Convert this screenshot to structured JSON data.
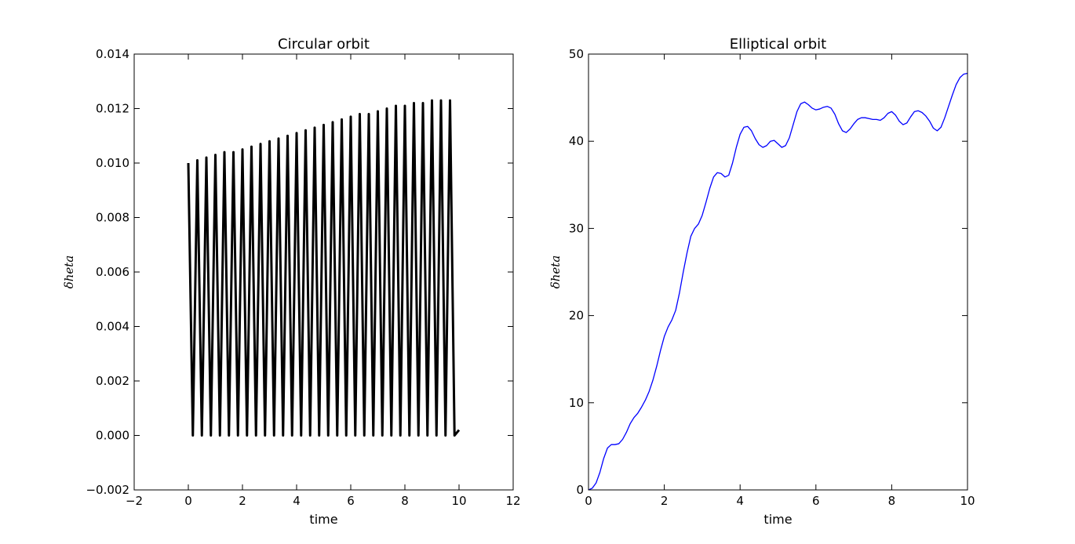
{
  "chart_data": [
    {
      "type": "line",
      "title": "Circular orbit",
      "xlabel": "time",
      "ylabel": "δheta",
      "xlim": [
        -2,
        12
      ],
      "ylim": [
        -0.002,
        0.014
      ],
      "xticks": [
        -2,
        0,
        2,
        4,
        6,
        8,
        10,
        12
      ],
      "xtick_labels": [
        "−2",
        "0",
        "2",
        "4",
        "6",
        "8",
        "10",
        "12"
      ],
      "yticks": [
        -0.002,
        0.0,
        0.002,
        0.004,
        0.006,
        0.008,
        0.01,
        0.012,
        0.014
      ],
      "ytick_labels": [
        "−0.002",
        "0.000",
        "0.002",
        "0.004",
        "0.006",
        "0.008",
        "0.010",
        "0.012",
        "0.014"
      ],
      "grid": false,
      "line_color": "#000000",
      "series": [
        {
          "x": [
            0.0,
            0.167,
            0.333,
            0.5,
            0.667,
            0.833,
            1.0,
            1.167,
            1.333,
            1.5,
            1.667,
            1.833,
            2.0,
            2.167,
            2.333,
            2.5,
            2.667,
            2.833,
            3.0,
            3.167,
            3.333,
            3.5,
            3.667,
            3.833,
            4.0,
            4.167,
            4.333,
            4.5,
            4.667,
            4.833,
            5.0,
            5.167,
            5.333,
            5.5,
            5.667,
            5.833,
            6.0,
            6.167,
            6.333,
            6.5,
            6.667,
            6.833,
            7.0,
            7.167,
            7.333,
            7.5,
            7.667,
            7.833,
            8.0,
            8.167,
            8.333,
            8.5,
            8.667,
            8.833,
            9.0,
            9.167,
            9.333,
            9.5,
            9.667,
            9.833,
            10.0
          ],
          "values": [
            0.01,
            0.0,
            0.0101,
            0.0,
            0.0102,
            0.0,
            0.0103,
            0.0,
            0.0104,
            0.0,
            0.0104,
            0.0,
            0.0105,
            0.0,
            0.0106,
            0.0,
            0.0107,
            0.0,
            0.0108,
            0.0,
            0.0109,
            0.0,
            0.011,
            0.0,
            0.0111,
            0.0,
            0.0112,
            0.0,
            0.0113,
            0.0,
            0.0114,
            0.0,
            0.0115,
            0.0,
            0.0116,
            0.0,
            0.0117,
            0.0,
            0.0118,
            0.0,
            0.0118,
            0.0,
            0.0119,
            0.0,
            0.012,
            0.0,
            0.0121,
            0.0,
            0.0121,
            0.0,
            0.0122,
            0.0,
            0.0122,
            0.0,
            0.0123,
            0.0,
            0.0123,
            0.0,
            0.0123,
            0.0,
            0.0002
          ]
        }
      ]
    },
    {
      "type": "line",
      "title": "Elliptical orbit",
      "xlabel": "time",
      "ylabel": "δheta",
      "xlim": [
        0,
        10
      ],
      "ylim": [
        0,
        50
      ],
      "xticks": [
        0,
        2,
        4,
        6,
        8,
        10
      ],
      "xtick_labels": [
        "0",
        "2",
        "4",
        "6",
        "8",
        "10"
      ],
      "yticks": [
        0,
        10,
        20,
        30,
        40,
        50
      ],
      "ytick_labels": [
        "0",
        "10",
        "20",
        "30",
        "40",
        "50"
      ],
      "grid": false,
      "line_color": "#0000ff",
      "series": [
        {
          "x": [
            0.0,
            0.1,
            0.2,
            0.3,
            0.4,
            0.5,
            0.6,
            0.7,
            0.8,
            0.9,
            1.0,
            1.1,
            1.2,
            1.3,
            1.4,
            1.5,
            1.6,
            1.7,
            1.8,
            1.9,
            2.0,
            2.1,
            2.2,
            2.3,
            2.4,
            2.5,
            2.6,
            2.7,
            2.8,
            2.9,
            3.0,
            3.1,
            3.2,
            3.3,
            3.4,
            3.5,
            3.6,
            3.7,
            3.8,
            3.9,
            4.0,
            4.1,
            4.2,
            4.3,
            4.4,
            4.5,
            4.6,
            4.7,
            4.8,
            4.9,
            5.0,
            5.1,
            5.2,
            5.3,
            5.4,
            5.5,
            5.6,
            5.7,
            5.8,
            5.9,
            6.0,
            6.1,
            6.2,
            6.3,
            6.4,
            6.5,
            6.6,
            6.7,
            6.8,
            6.9,
            7.0,
            7.1,
            7.2,
            7.3,
            7.4,
            7.5,
            7.6,
            7.7,
            7.8,
            7.9,
            8.0,
            8.1,
            8.2,
            8.3,
            8.4,
            8.5,
            8.6,
            8.7,
            8.8,
            8.9,
            9.0,
            9.1,
            9.2,
            9.3,
            9.4,
            9.5,
            9.6,
            9.7,
            9.8,
            9.9,
            10.0
          ],
          "values": [
            0.0,
            0.2,
            0.8,
            2.0,
            3.6,
            4.8,
            5.2,
            5.2,
            5.3,
            5.8,
            6.6,
            7.6,
            8.3,
            8.8,
            9.5,
            10.3,
            11.3,
            12.6,
            14.2,
            16.0,
            17.6,
            18.7,
            19.5,
            20.6,
            22.6,
            25.0,
            27.2,
            29.1,
            30.0,
            30.5,
            31.5,
            33.0,
            34.6,
            35.9,
            36.4,
            36.3,
            35.9,
            36.1,
            37.5,
            39.3,
            40.8,
            41.6,
            41.7,
            41.2,
            40.3,
            39.6,
            39.3,
            39.5,
            40.0,
            40.1,
            39.7,
            39.3,
            39.5,
            40.4,
            41.9,
            43.4,
            44.3,
            44.5,
            44.2,
            43.8,
            43.6,
            43.7,
            43.9,
            44.0,
            43.8,
            43.1,
            42.0,
            41.2,
            41.0,
            41.4,
            42.0,
            42.5,
            42.7,
            42.7,
            42.6,
            42.5,
            42.5,
            42.4,
            42.7,
            43.2,
            43.4,
            43.0,
            42.3,
            41.9,
            42.1,
            42.8,
            43.4,
            43.5,
            43.3,
            42.9,
            42.3,
            41.5,
            41.2,
            41.6,
            42.7,
            44.0,
            45.3,
            46.5,
            47.3,
            47.7,
            47.8
          ]
        }
      ]
    }
  ]
}
